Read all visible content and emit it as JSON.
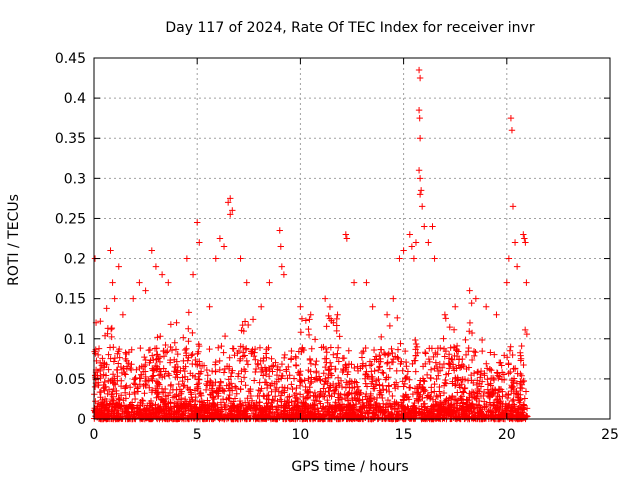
{
  "chart_data": {
    "type": "scatter",
    "title": "Day 117 of 2024, Rate Of TEC Index for receiver invr",
    "xlabel": "GPS time / hours",
    "ylabel": "ROTI / TECUs",
    "xlim": [
      0,
      25
    ],
    "ylim": [
      0,
      0.45
    ],
    "x_ticks": [
      0,
      5,
      10,
      15,
      20,
      25
    ],
    "x_tick_labels": [
      "0",
      "5",
      "10",
      "15",
      "20",
      "25"
    ],
    "y_ticks": [
      0,
      0.05,
      0.1,
      0.15,
      0.2,
      0.25,
      0.3,
      0.35,
      0.4,
      0.45
    ],
    "y_tick_labels": [
      "0",
      "0.05",
      "0.1",
      "0.15",
      "0.2",
      "0.25",
      "0.3",
      "0.35",
      "0.4",
      "0.45"
    ],
    "grid": true,
    "marker": "+",
    "color": "#ff0000",
    "data_range_hours": [
      0,
      21
    ],
    "series": [
      {
        "name": "ROTI",
        "points": [
          [
            0.05,
            0.2
          ],
          [
            0.1,
            0.12
          ],
          [
            0.2,
            0.08
          ],
          [
            0.3,
            0.06
          ],
          [
            0.8,
            0.21
          ],
          [
            0.9,
            0.17
          ],
          [
            1.0,
            0.15
          ],
          [
            1.2,
            0.19
          ],
          [
            1.4,
            0.13
          ],
          [
            1.9,
            0.15
          ],
          [
            2.2,
            0.17
          ],
          [
            2.5,
            0.16
          ],
          [
            2.8,
            0.21
          ],
          [
            3.0,
            0.19
          ],
          [
            3.3,
            0.18
          ],
          [
            3.6,
            0.17
          ],
          [
            4.0,
            0.12
          ],
          [
            4.5,
            0.2
          ],
          [
            4.8,
            0.18
          ],
          [
            5.0,
            0.245
          ],
          [
            5.1,
            0.22
          ],
          [
            5.6,
            0.14
          ],
          [
            5.9,
            0.2
          ],
          [
            6.1,
            0.225
          ],
          [
            6.3,
            0.215
          ],
          [
            6.5,
            0.27
          ],
          [
            6.6,
            0.275
          ],
          [
            6.7,
            0.26
          ],
          [
            6.6,
            0.255
          ],
          [
            7.1,
            0.2
          ],
          [
            7.4,
            0.17
          ],
          [
            8.1,
            0.14
          ],
          [
            8.5,
            0.17
          ],
          [
            9.0,
            0.235
          ],
          [
            9.05,
            0.215
          ],
          [
            9.1,
            0.19
          ],
          [
            9.2,
            0.18
          ],
          [
            10.0,
            0.14
          ],
          [
            10.5,
            0.13
          ],
          [
            11.2,
            0.15
          ],
          [
            11.8,
            0.13
          ],
          [
            12.2,
            0.23
          ],
          [
            12.25,
            0.225
          ],
          [
            12.6,
            0.17
          ],
          [
            13.2,
            0.17
          ],
          [
            13.5,
            0.14
          ],
          [
            14.2,
            0.13
          ],
          [
            14.5,
            0.15
          ],
          [
            14.8,
            0.2
          ],
          [
            15.0,
            0.21
          ],
          [
            15.3,
            0.23
          ],
          [
            15.4,
            0.215
          ],
          [
            15.5,
            0.2
          ],
          [
            15.6,
            0.22
          ],
          [
            15.75,
            0.435
          ],
          [
            15.8,
            0.425
          ],
          [
            15.75,
            0.385
          ],
          [
            15.78,
            0.375
          ],
          [
            15.8,
            0.35
          ],
          [
            15.75,
            0.31
          ],
          [
            15.8,
            0.3
          ],
          [
            15.85,
            0.285
          ],
          [
            15.8,
            0.28
          ],
          [
            15.9,
            0.265
          ],
          [
            16.0,
            0.24
          ],
          [
            16.2,
            0.22
          ],
          [
            16.4,
            0.24
          ],
          [
            16.5,
            0.2
          ],
          [
            17.0,
            0.13
          ],
          [
            17.5,
            0.14
          ],
          [
            18.2,
            0.16
          ],
          [
            18.5,
            0.15
          ],
          [
            19.0,
            0.14
          ],
          [
            19.5,
            0.13
          ],
          [
            20.0,
            0.17
          ],
          [
            20.1,
            0.2
          ],
          [
            20.2,
            0.375
          ],
          [
            20.25,
            0.36
          ],
          [
            20.3,
            0.265
          ],
          [
            20.4,
            0.22
          ],
          [
            20.5,
            0.19
          ],
          [
            20.8,
            0.23
          ],
          [
            20.85,
            0.225
          ],
          [
            20.9,
            0.22
          ],
          [
            20.95,
            0.17
          ]
        ]
      }
    ]
  }
}
